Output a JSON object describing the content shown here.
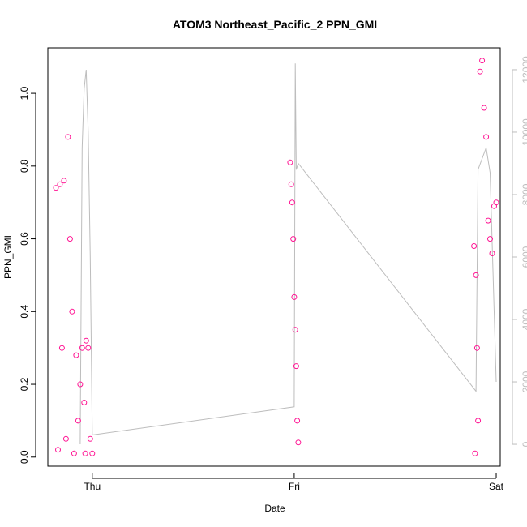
{
  "chart_data": {
    "type": "scatter",
    "title": "ATOM3 Northeast_Pacific_2 PPN_GMI",
    "xlabel": "Date",
    "ylabel": "PPN_GMI",
    "x_ticks": [
      "Thu",
      "Fri",
      "Sat"
    ],
    "ylim": [
      0,
      1.1
    ],
    "y_ticks": [
      "0.0",
      "0.2",
      "0.4",
      "0.6",
      "0.8",
      "1.0"
    ],
    "y2lim": [
      0,
      12500
    ],
    "y2_ticks": [
      "0",
      "2000",
      "4000",
      "6000",
      "8000",
      "10000",
      "12000"
    ],
    "grid": false,
    "marker_color": "#ff1493",
    "line_color": "#bdbdbd",
    "series": [
      {
        "marker": "open-circle",
        "x_unit": "days since Thu 00:00",
        "x": [
          -0.18,
          -0.17,
          -0.16,
          -0.15,
          -0.14,
          -0.13,
          -0.12,
          -0.11,
          -0.1,
          -0.09,
          -0.08,
          -0.07,
          -0.06,
          -0.05,
          -0.04,
          -0.035,
          -0.03,
          -0.02,
          -0.01,
          0.0,
          0.98,
          0.985,
          0.99,
          0.995,
          1.0,
          1.005,
          1.01,
          1.015,
          1.02,
          1.89,
          1.895,
          1.9,
          1.905,
          1.91,
          1.92,
          1.93,
          1.94,
          1.95,
          1.96,
          1.97,
          1.98,
          1.99,
          2.0
        ],
        "y": [
          0.74,
          0.02,
          0.75,
          0.3,
          0.76,
          0.05,
          0.88,
          0.6,
          0.4,
          0.01,
          0.28,
          0.1,
          0.2,
          0.3,
          0.15,
          0.01,
          0.32,
          0.3,
          0.05,
          0.01,
          0.81,
          0.75,
          0.7,
          0.6,
          0.44,
          0.35,
          0.25,
          0.1,
          0.04,
          0.58,
          0.01,
          0.5,
          0.3,
          0.1,
          1.06,
          1.09,
          0.96,
          0.88,
          0.65,
          0.6,
          0.56,
          0.69,
          0.7
        ]
      },
      {
        "marker": "line",
        "axis": "right",
        "x_unit": "days since Thu 00:00",
        "x": [
          -0.06,
          -0.05,
          -0.04,
          -0.03,
          -0.02,
          -0.01,
          0.0,
          1.0,
          1.005,
          1.01,
          1.02,
          1.9,
          1.91,
          1.95,
          1.97,
          2.0
        ],
        "y": [
          0,
          9500,
          11400,
          12000,
          10000,
          6000,
          300,
          1200,
          12200,
          8800,
          9000,
          1700,
          8800,
          9500,
          8700,
          2000
        ]
      }
    ]
  }
}
